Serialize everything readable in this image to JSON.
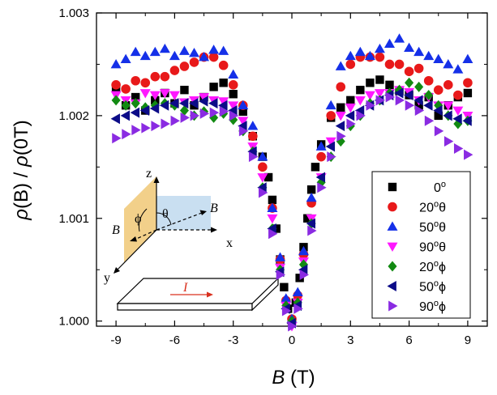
{
  "chart_data": {
    "type": "scatter",
    "xlabel": {
      "main": "B",
      "unit": " (T)"
    },
    "ylabel": {
      "rho1": "ρ",
      "b": "(B)",
      "slash": " / ",
      "rho2": "ρ",
      "zero": "(0T)"
    },
    "xlim": [
      -10,
      10
    ],
    "ylim": [
      0.99995,
      1.003
    ],
    "xticks": [
      -9,
      -6,
      -3,
      0,
      3,
      6,
      9
    ],
    "xtick_labels": [
      "-9",
      "-6",
      "-3",
      "0",
      "3",
      "6",
      "9"
    ],
    "yticks": [
      1.0,
      1.001,
      1.002,
      1.003
    ],
    "ytick_labels": [
      "1.000",
      "1.001",
      "1.002",
      "1.003"
    ],
    "grid": false,
    "legend_placement": "right",
    "series": [
      {
        "name": "0°",
        "label_main": "0",
        "label_sup": "o",
        "label_sym": "",
        "marker": "square",
        "color": "#000000",
        "x": [
          -9.0,
          -8.5,
          -8.0,
          -7.5,
          -7.0,
          -6.5,
          -6.0,
          -5.5,
          -5.0,
          -4.5,
          -4.0,
          -3.5,
          -3.0,
          -2.5,
          -2.0,
          -1.5,
          -1.2,
          -1.0,
          -0.8,
          -0.6,
          -0.4,
          -0.2,
          0.0,
          0.2,
          0.4,
          0.6,
          0.8,
          1.0,
          1.2,
          1.5,
          2.0,
          2.5,
          3.0,
          3.5,
          4.0,
          4.5,
          5.0,
          5.5,
          6.0,
          6.5,
          7.0,
          7.5,
          8.0,
          8.5,
          9.0
        ],
        "y": [
          1.00227,
          1.0021,
          1.00218,
          1.00205,
          1.00215,
          1.00222,
          1.00212,
          1.00225,
          1.0021,
          1.00218,
          1.00228,
          1.00232,
          1.00221,
          1.00204,
          1.0018,
          1.0016,
          1.0014,
          1.00118,
          1.0009,
          1.0006,
          1.00033,
          1.00012,
          1.0,
          1.00018,
          1.00042,
          1.00072,
          1.001,
          1.00128,
          1.0015,
          1.00172,
          1.00198,
          1.00208,
          1.00215,
          1.00225,
          1.00232,
          1.00235,
          1.0023,
          1.00224,
          1.0022,
          1.0021,
          1.00218,
          1.002,
          1.0021,
          1.00218,
          1.00222
        ]
      },
      {
        "name": "20°θ",
        "label_main": "20",
        "label_sup": "o",
        "label_sym": "θ",
        "marker": "circle",
        "color": "#e8191a",
        "x": [
          -9.0,
          -8.5,
          -8.0,
          -7.5,
          -7.0,
          -6.5,
          -6.0,
          -5.5,
          -5.0,
          -4.5,
          -4.0,
          -3.5,
          -3.0,
          -2.5,
          -2.0,
          -1.5,
          -1.0,
          -0.6,
          -0.3,
          0.0,
          0.3,
          0.6,
          1.0,
          1.5,
          2.0,
          2.5,
          3.0,
          3.5,
          4.0,
          4.5,
          5.0,
          5.5,
          6.0,
          6.5,
          7.0,
          7.5,
          8.0,
          8.5,
          9.0
        ],
        "y": [
          1.0023,
          1.00226,
          1.00234,
          1.00232,
          1.00238,
          1.00238,
          1.00244,
          1.00248,
          1.00252,
          1.00257,
          1.00257,
          1.00249,
          1.0023,
          1.0021,
          1.0018,
          1.0015,
          1.0011,
          1.0006,
          1.0002,
          1.00002,
          1.00025,
          1.00065,
          1.00115,
          1.0016,
          1.002,
          1.00228,
          1.0025,
          1.00257,
          1.00257,
          1.00257,
          1.0025,
          1.0025,
          1.00243,
          1.00246,
          1.00234,
          1.00225,
          1.0023,
          1.0022,
          1.00232
        ]
      },
      {
        "name": "50°θ",
        "label_main": "50",
        "label_sup": "o",
        "label_sym": "θ",
        "marker": "triangle-up",
        "color": "#1530e8",
        "x": [
          -9.0,
          -8.5,
          -8.0,
          -7.5,
          -7.0,
          -6.5,
          -6.0,
          -5.5,
          -5.0,
          -4.5,
          -4.0,
          -3.5,
          -3.0,
          -2.5,
          -2.0,
          -1.5,
          -1.0,
          -0.6,
          -0.3,
          0.0,
          0.3,
          0.6,
          1.0,
          1.5,
          2.0,
          2.5,
          3.0,
          3.5,
          4.0,
          4.5,
          5.0,
          5.5,
          6.0,
          6.5,
          7.0,
          7.5,
          8.0,
          8.5,
          9.0
        ],
        "y": [
          1.0025,
          1.00255,
          1.00262,
          1.00258,
          1.00262,
          1.00265,
          1.00258,
          1.00263,
          1.00261,
          1.00257,
          1.00264,
          1.00263,
          1.0024,
          1.0021,
          1.0019,
          1.0016,
          1.0011,
          1.00062,
          1.00022,
          1.00002,
          1.00028,
          1.00068,
          1.0012,
          1.0017,
          1.0021,
          1.00248,
          1.00258,
          1.00262,
          1.00258,
          1.00265,
          1.0027,
          1.00275,
          1.00266,
          1.00262,
          1.00258,
          1.00255,
          1.0025,
          1.00245,
          1.00255
        ]
      },
      {
        "name": "90°θ",
        "label_main": "90",
        "label_sup": "o",
        "label_sym": "θ",
        "marker": "triangle-down",
        "color": "#ff18ff",
        "x": [
          -9.0,
          -8.5,
          -8.0,
          -7.5,
          -7.0,
          -6.5,
          -6.0,
          -5.5,
          -5.0,
          -4.5,
          -4.0,
          -3.5,
          -3.0,
          -2.5,
          -2.0,
          -1.5,
          -1.0,
          -0.6,
          -0.3,
          0.0,
          0.3,
          0.6,
          1.0,
          1.5,
          2.0,
          2.5,
          3.0,
          3.5,
          4.0,
          4.5,
          5.0,
          5.5,
          6.0,
          6.5,
          7.0,
          7.5,
          8.0,
          8.5,
          9.0
        ],
        "y": [
          1.0022,
          1.00215,
          1.00212,
          1.00222,
          1.0022,
          1.00222,
          1.0022,
          1.00213,
          1.00215,
          1.00218,
          1.00215,
          1.00214,
          1.0021,
          1.00195,
          1.0017,
          1.0014,
          1.001,
          1.00052,
          1.00015,
          0.99995,
          1.00018,
          1.00058,
          1.001,
          1.0014,
          1.00175,
          1.002,
          1.00208,
          1.00215,
          1.0022,
          1.00222,
          1.00222,
          1.00225,
          1.00223,
          1.00215,
          1.00218,
          1.0021,
          1.0021,
          1.00205,
          1.002
        ]
      },
      {
        "name": "20°ϕ",
        "label_main": "20",
        "label_sup": "o",
        "label_sym": "ϕ",
        "marker": "diamond",
        "color": "#128a12",
        "x": [
          -9.0,
          -8.5,
          -8.0,
          -7.5,
          -7.0,
          -6.5,
          -6.0,
          -5.5,
          -5.0,
          -4.5,
          -4.0,
          -3.5,
          -3.0,
          -2.5,
          -2.0,
          -1.5,
          -1.0,
          -0.6,
          -0.3,
          0.0,
          0.3,
          0.6,
          1.0,
          1.5,
          2.0,
          2.5,
          3.0,
          3.5,
          4.0,
          4.5,
          5.0,
          5.5,
          6.0,
          6.5,
          7.0,
          7.5,
          8.0,
          8.5,
          9.0
        ],
        "y": [
          1.00215,
          1.0021,
          1.00212,
          1.00208,
          1.0021,
          1.00212,
          1.0021,
          1.00205,
          1.002,
          1.00204,
          1.00198,
          1.00202,
          1.00196,
          1.00185,
          1.00165,
          1.0013,
          1.0009,
          1.0005,
          1.00015,
          1.0,
          1.00018,
          1.00055,
          1.00095,
          1.00135,
          1.0016,
          1.00175,
          1.0019,
          1.002,
          1.00212,
          1.00215,
          1.00222,
          1.00225,
          1.00232,
          1.00228,
          1.0022,
          1.0021,
          1.002,
          1.00192,
          1.00195
        ]
      },
      {
        "name": "50°ϕ",
        "label_main": "50",
        "label_sup": "o",
        "label_sym": "ϕ",
        "marker": "triangle-left",
        "color": "#0c0c88",
        "x": [
          -9.0,
          -8.5,
          -8.0,
          -7.5,
          -7.0,
          -6.5,
          -6.0,
          -5.5,
          -5.0,
          -4.5,
          -4.0,
          -3.5,
          -3.0,
          -2.5,
          -2.0,
          -1.5,
          -1.0,
          -0.6,
          -0.3,
          0.0,
          0.3,
          0.6,
          1.0,
          1.5,
          2.0,
          2.5,
          3.0,
          3.5,
          4.0,
          4.5,
          5.0,
          5.5,
          6.0,
          6.5,
          7.0,
          7.5,
          8.0,
          8.5,
          9.0
        ],
        "y": [
          1.00197,
          1.002,
          1.00203,
          1.00205,
          1.00207,
          1.0021,
          1.00212,
          1.00212,
          1.00212,
          1.00214,
          1.00212,
          1.0021,
          1.00205,
          1.0019,
          1.00165,
          1.0013,
          1.0009,
          1.00048,
          1.00012,
          0.99998,
          1.00015,
          1.0005,
          1.00095,
          1.0014,
          1.0017,
          1.0019,
          1.002,
          1.00205,
          1.0021,
          1.00215,
          1.0022,
          1.00222,
          1.0022,
          1.00215,
          1.0021,
          1.00205,
          1.002,
          1.00197,
          1.00195
        ]
      },
      {
        "name": "90°ϕ",
        "label_main": "90",
        "label_sup": "o",
        "label_sym": "ϕ",
        "marker": "triangle-right",
        "color": "#8a2be2",
        "x": [
          -9.0,
          -8.5,
          -8.0,
          -7.5,
          -7.0,
          -6.5,
          -6.0,
          -5.5,
          -5.0,
          -4.5,
          -4.0,
          -3.5,
          -3.0,
          -2.5,
          -2.0,
          -1.5,
          -1.0,
          -0.6,
          -0.3,
          0.0,
          0.3,
          0.6,
          1.0,
          1.5,
          2.0,
          2.5,
          3.0,
          3.5,
          4.0,
          4.5,
          5.0,
          5.5,
          6.0,
          6.5,
          7.0,
          7.5,
          8.0,
          8.5,
          9.0
        ],
        "y": [
          1.00178,
          1.00182,
          1.00186,
          1.00188,
          1.0019,
          1.00192,
          1.00195,
          1.00198,
          1.002,
          1.00202,
          1.00203,
          1.00204,
          1.002,
          1.00185,
          1.0016,
          1.00125,
          1.00085,
          1.00045,
          1.0001,
          0.99995,
          1.00012,
          1.00045,
          1.00088,
          1.0013,
          1.0016,
          1.0018,
          1.00192,
          1.002,
          1.0021,
          1.00215,
          1.00218,
          1.00215,
          1.0021,
          1.00205,
          1.00195,
          1.00185,
          1.00175,
          1.00168,
          1.00162
        ]
      }
    ],
    "inset": {
      "axis_z": "z",
      "axis_x": "x",
      "axis_y": "y",
      "field_top": "B",
      "field_left": "B",
      "angle_theta": "θ",
      "angle_phi": "ϕ",
      "current": "I",
      "colors": {
        "xz_plane": "#c9dff1",
        "yz_plane": "#f2d08a",
        "current_arrow": "#d9301e"
      }
    }
  }
}
